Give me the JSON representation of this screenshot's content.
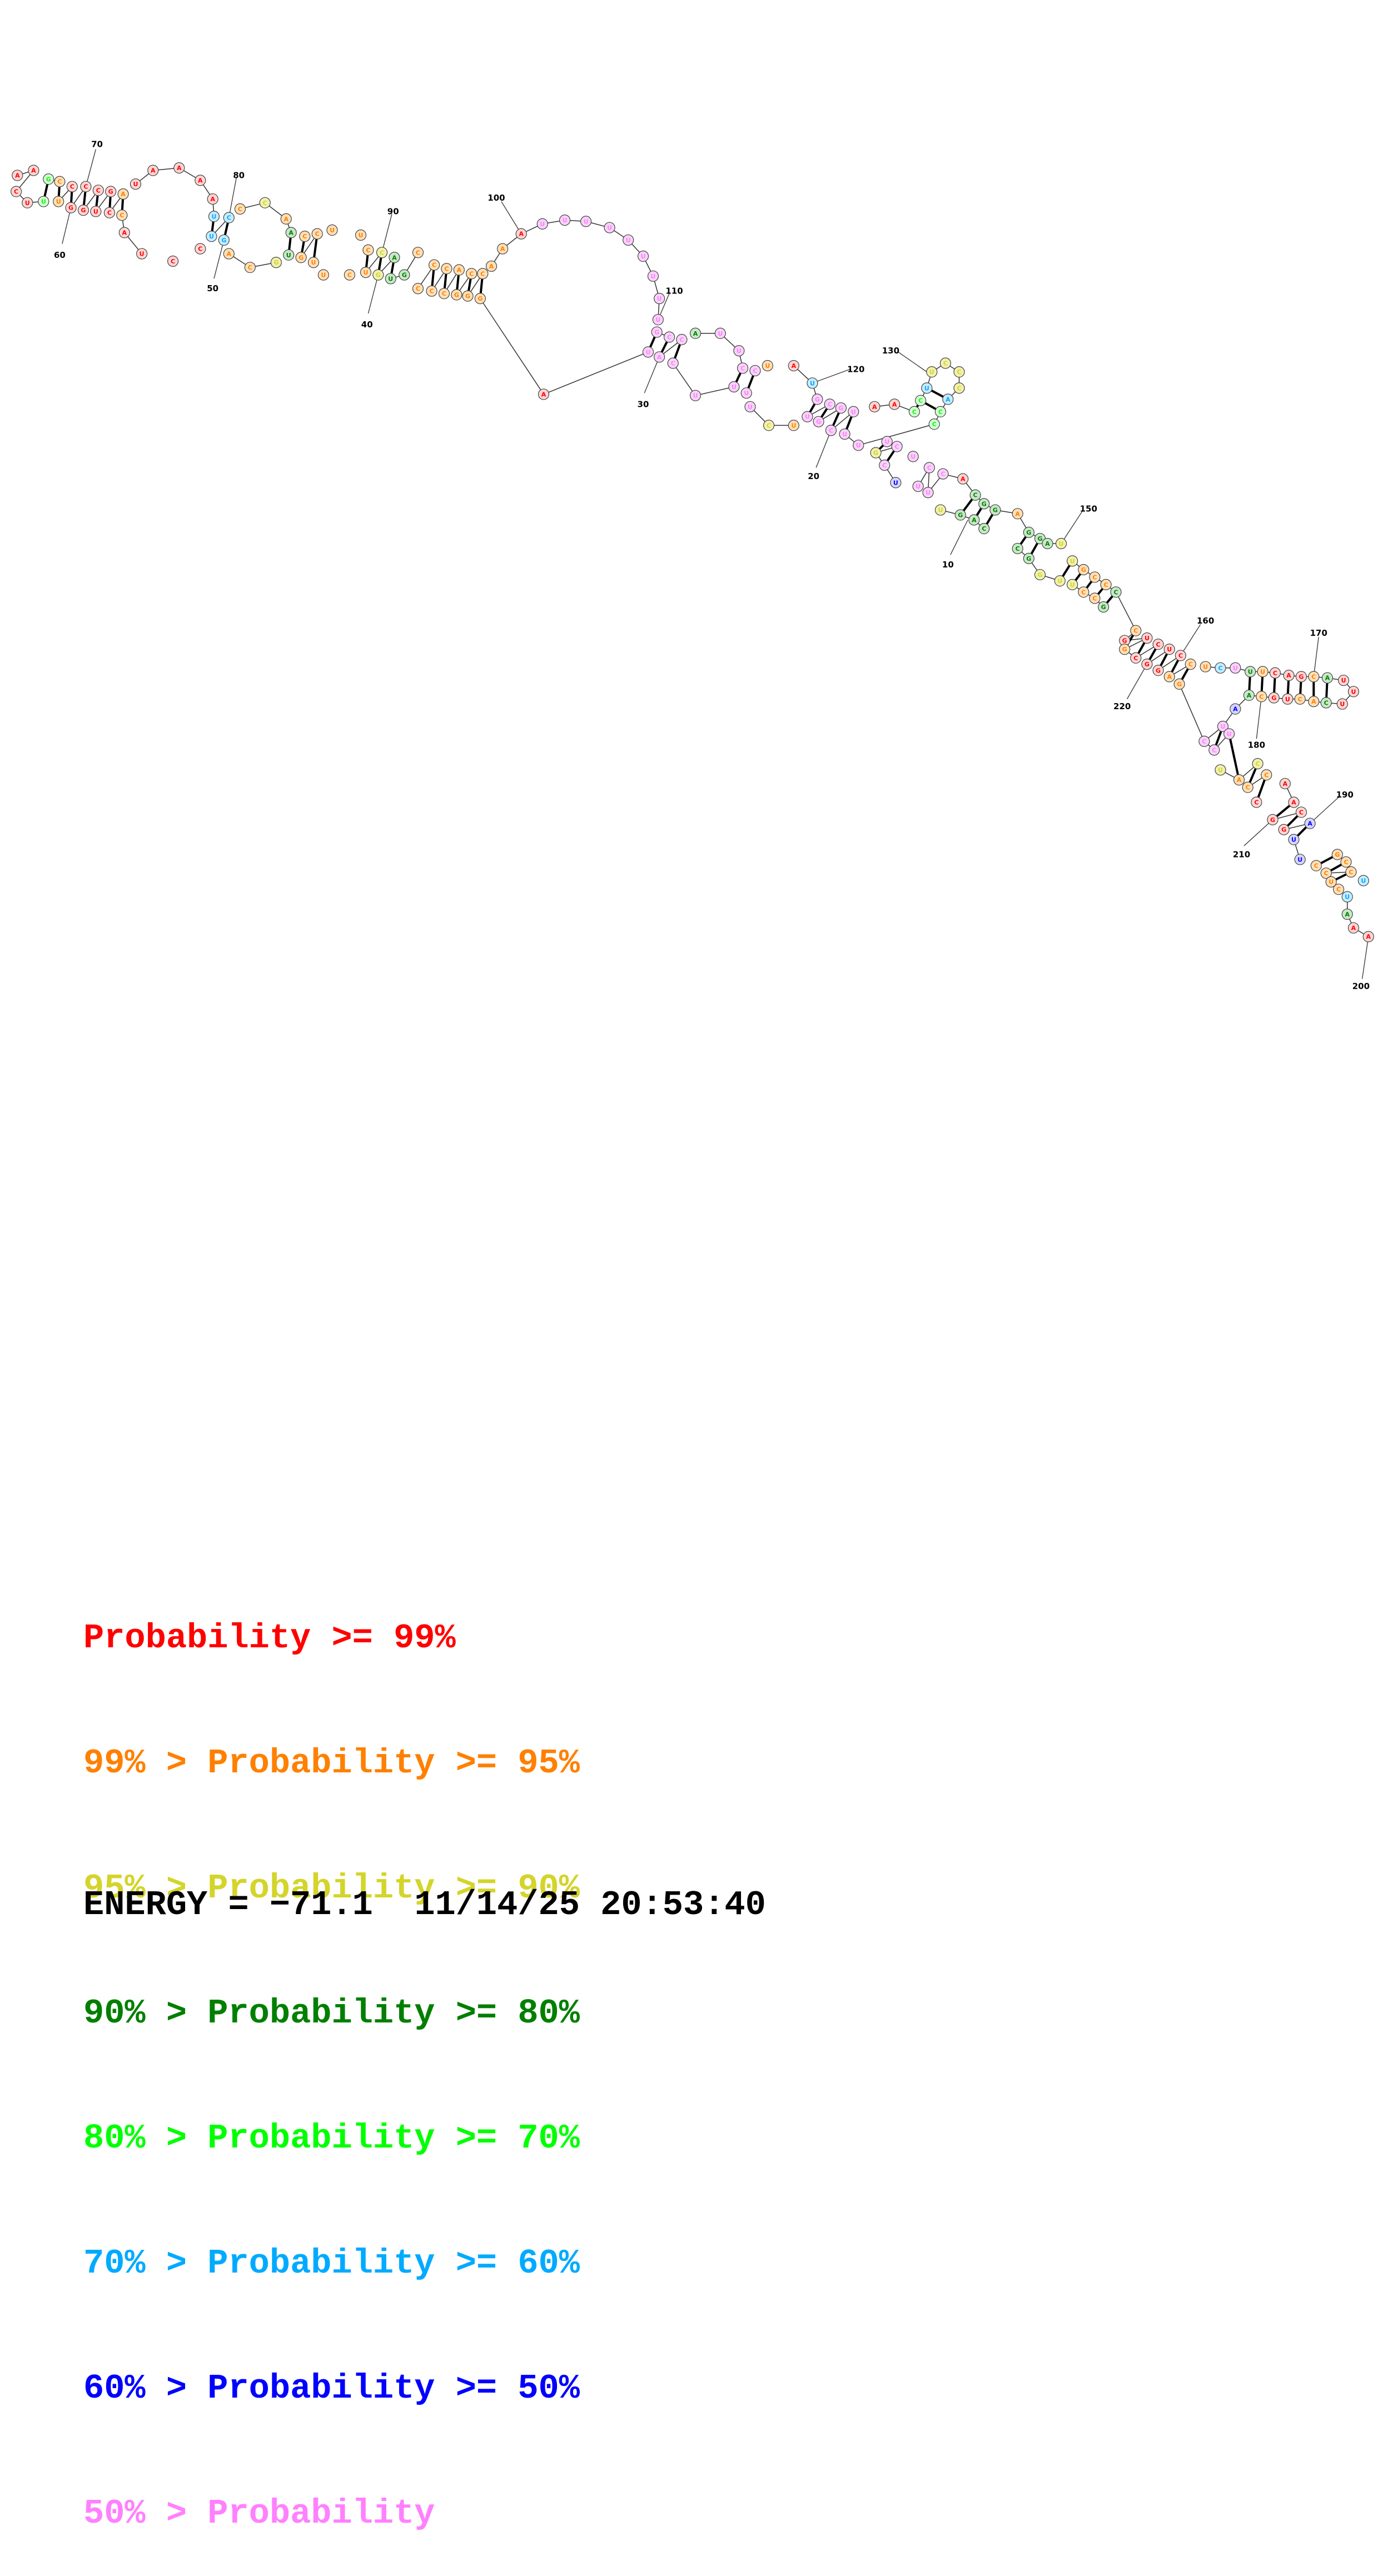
{
  "legend": [
    {
      "prefix": "",
      "label": "Probability >= 99%",
      "color": "#ff0000"
    },
    {
      "prefix": "99% > ",
      "label": "Probability >= 95%",
      "color": "#ff8000"
    },
    {
      "prefix": "95% > ",
      "label": "Probability >= 90%",
      "color": "#d4d42a"
    },
    {
      "prefix": "90% > ",
      "label": "Probability >= 80%",
      "color": "#007f00"
    },
    {
      "prefix": "80% > ",
      "label": "Probability >= 70%",
      "color": "#00ff00"
    },
    {
      "prefix": "70% > ",
      "label": "Probability >= 60%",
      "color": "#00aaff"
    },
    {
      "prefix": "60% > ",
      "label": "Probability >= 50%",
      "color": "#0000ff"
    },
    {
      "prefix": "50% > ",
      "label": "Probability",
      "color": "#ff80ff"
    }
  ],
  "footer": {
    "energy": "ENERGY = −71.1",
    "timestamp": "11/14/25 20:53:40"
  },
  "position_labels": [
    "10",
    "20",
    "30",
    "40",
    "50",
    "60",
    "70",
    "80",
    "90",
    "100",
    "110",
    "120",
    "130",
    "150",
    "160",
    "170",
    "180",
    "190",
    "200",
    "210",
    "220"
  ]
}
